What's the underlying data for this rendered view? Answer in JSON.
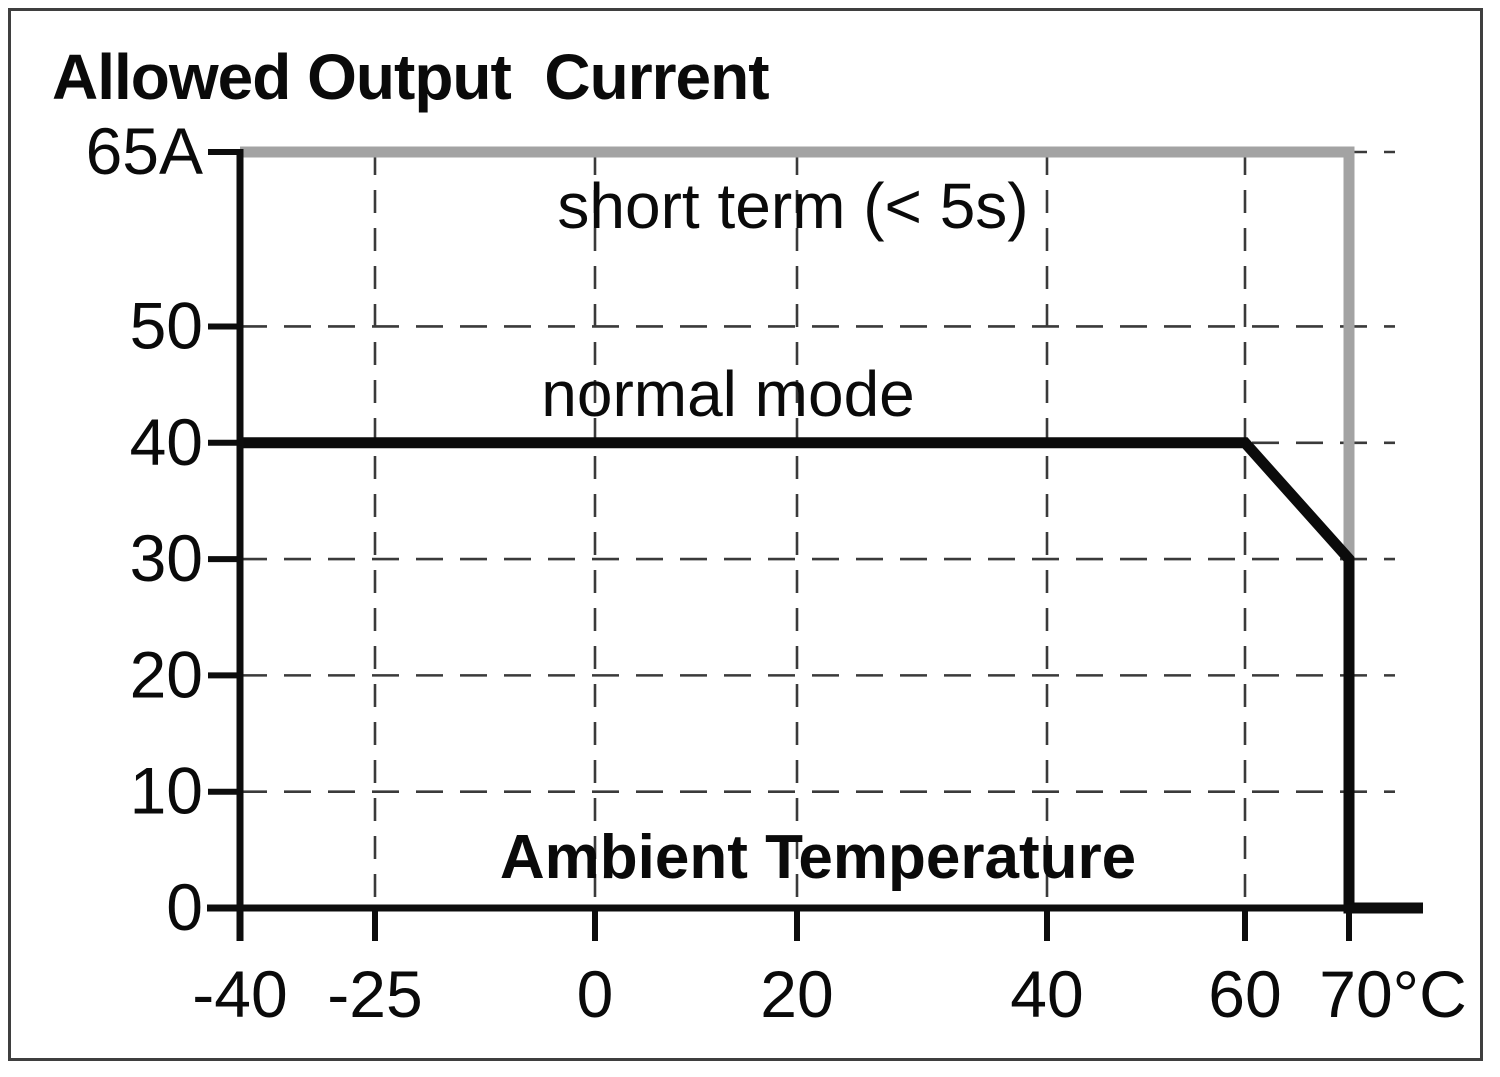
{
  "chart_data": {
    "type": "line",
    "title": "Allowed Output  Current",
    "xlabel": "Ambient Temperature",
    "x_unit": "°C",
    "y_unit": "A",
    "x_axis": {
      "ticks": [
        -40,
        -25,
        0,
        20,
        40,
        60,
        70
      ],
      "tick_labels": [
        "-40",
        "-25",
        "0",
        "20",
        "40",
        "60",
        "70°C"
      ],
      "range": [
        -40,
        70
      ]
    },
    "y_axis": {
      "ticks": [
        0,
        10,
        20,
        30,
        40,
        50,
        65
      ],
      "tick_labels": [
        "0",
        "10",
        "20",
        "30",
        "40",
        "50",
        "65A"
      ],
      "range": [
        0,
        65
      ]
    },
    "series": [
      {
        "name": "short term (< 5s)",
        "color": "#a3a3a3",
        "points": [
          [
            -40,
            65
          ],
          [
            70,
            65
          ],
          [
            70,
            30
          ]
        ],
        "extend_to_axis_end": false
      },
      {
        "name": "normal mode",
        "color": "#0b0b0b",
        "points": [
          [
            -40,
            40
          ],
          [
            60,
            40
          ],
          [
            70,
            30
          ],
          [
            70,
            0
          ]
        ],
        "extend_to_axis_end": true
      }
    ],
    "grid": {
      "style": "dashed",
      "horizontal_at": [
        10,
        20,
        30,
        40,
        50,
        65
      ],
      "vertical_at": [
        -25,
        0,
        20,
        40,
        60
      ]
    },
    "colors": {
      "axis": "#0d0d0d",
      "grid": "#3a3a3a",
      "background": "#ffffff",
      "border": "#3f3f3f",
      "text": "#0a0a0a"
    }
  }
}
